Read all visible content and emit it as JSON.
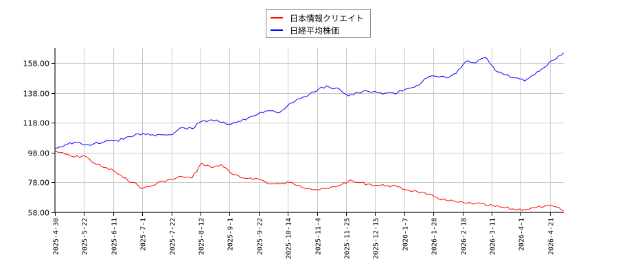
{
  "chart_data": {
    "type": "line",
    "title": "",
    "xlabel": "",
    "ylabel": "",
    "ylim": [
      58,
      168
    ],
    "y_ticks": [
      "58.00",
      "78.00",
      "98.00",
      "118.00",
      "138.00",
      "158.00"
    ],
    "x_ticks": [
      "2025-4-30",
      "2025-5-22",
      "2025-6-11",
      "2025-7-1",
      "2025-7-22",
      "2025-8-12",
      "2025-9-1",
      "2025-9-22",
      "2025-10-14",
      "2025-11-4",
      "2025-11-25",
      "2025-12-15",
      "2026-1-7",
      "2026-1-28",
      "2026-2-18",
      "2026-3-11",
      "2026-4-1",
      "2026-4-21"
    ],
    "grid": true,
    "legend_position": "top-center",
    "series": [
      {
        "name": "日本情報クリエイト",
        "color": "#ff0000",
        "x": [
          "2025-4-30",
          "2025-5-7",
          "2025-5-14",
          "2025-5-22",
          "2025-5-29",
          "2025-6-5",
          "2025-6-11",
          "2025-6-18",
          "2025-6-25",
          "2025-7-1",
          "2025-7-8",
          "2025-7-15",
          "2025-7-22",
          "2025-7-29",
          "2025-8-5",
          "2025-8-12",
          "2025-8-19",
          "2025-8-26",
          "2025-9-1",
          "2025-9-8",
          "2025-9-15",
          "2025-9-22",
          "2025-9-29",
          "2025-10-7",
          "2025-10-14",
          "2025-10-21",
          "2025-10-28",
          "2025-11-4",
          "2025-11-11",
          "2025-11-18",
          "2025-11-25",
          "2025-12-2",
          "2025-12-9",
          "2025-12-15",
          "2025-12-22",
          "2025-12-29",
          "2026-1-7",
          "2026-1-14",
          "2026-1-21",
          "2026-1-28",
          "2026-2-4",
          "2026-2-11",
          "2026-2-18",
          "2026-2-25",
          "2026-3-4",
          "2026-3-11",
          "2026-3-18",
          "2026-3-25",
          "2026-4-1",
          "2026-4-8",
          "2026-4-15",
          "2026-4-21",
          "2026-4-28"
        ],
        "values": [
          99,
          97,
          95,
          96,
          91,
          88,
          86,
          81,
          78,
          74,
          76,
          79,
          80,
          82,
          81,
          91,
          88,
          90,
          84,
          81,
          81,
          80,
          77,
          77,
          78,
          76,
          74,
          73,
          74,
          76,
          79,
          78,
          77,
          76,
          76,
          75,
          73,
          72,
          70,
          68,
          66,
          65,
          64,
          64,
          63,
          62,
          61,
          60,
          60,
          61,
          62,
          62,
          59
        ]
      },
      {
        "name": "日経平均株価",
        "color": "#0000ff",
        "x": [
          "2025-4-30",
          "2025-5-7",
          "2025-5-14",
          "2025-5-22",
          "2025-5-29",
          "2025-6-5",
          "2025-6-11",
          "2025-6-18",
          "2025-6-25",
          "2025-7-1",
          "2025-7-8",
          "2025-7-15",
          "2025-7-22",
          "2025-7-29",
          "2025-8-5",
          "2025-8-12",
          "2025-8-19",
          "2025-8-26",
          "2025-9-1",
          "2025-9-8",
          "2025-9-15",
          "2025-9-22",
          "2025-9-29",
          "2025-10-7",
          "2025-10-14",
          "2025-10-21",
          "2025-10-28",
          "2025-11-4",
          "2025-11-11",
          "2025-11-18",
          "2025-11-25",
          "2025-12-2",
          "2025-12-9",
          "2025-12-15",
          "2025-12-22",
          "2025-12-29",
          "2026-1-7",
          "2026-1-14",
          "2026-1-21",
          "2026-1-28",
          "2026-2-4",
          "2026-2-11",
          "2026-2-18",
          "2026-2-25",
          "2026-3-4",
          "2026-3-11",
          "2026-3-18",
          "2026-3-25",
          "2026-4-1",
          "2026-4-8",
          "2026-4-15",
          "2026-4-21",
          "2026-4-28"
        ],
        "values": [
          101,
          103,
          105,
          103,
          104,
          105,
          106,
          107,
          109,
          111,
          110,
          110,
          110,
          115,
          114,
          119,
          120,
          118,
          117,
          119,
          122,
          125,
          126,
          125,
          131,
          134,
          137,
          141,
          142,
          141,
          136,
          138,
          139,
          138,
          138,
          138,
          141,
          143,
          148,
          149,
          148,
          151,
          159,
          158,
          162,
          153,
          150,
          148,
          146,
          150,
          155,
          160,
          165
        ]
      }
    ]
  },
  "legend": {
    "items": [
      {
        "label": "日本情報クリエイト",
        "color": "#ff0000"
      },
      {
        "label": "日経平均株価",
        "color": "#0000ff"
      }
    ]
  }
}
